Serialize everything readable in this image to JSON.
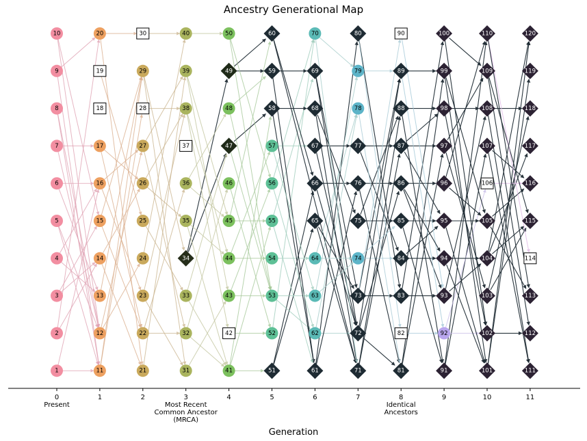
{
  "title": "Ancestry Generational Map",
  "xlabel": "Generation",
  "generations": [
    {
      "gen": 0,
      "label": "0",
      "sub": [
        "Present"
      ],
      "color": "#f28ea1",
      "edge": "#e0a3b4"
    },
    {
      "gen": 1,
      "label": "1",
      "sub": [],
      "color": "#eda060",
      "edge": "#dbb08f"
    },
    {
      "gen": 2,
      "label": "2",
      "sub": [],
      "color": "#c9a95c",
      "edge": "#cbb691"
    },
    {
      "gen": 3,
      "label": "3",
      "sub": [
        "Most Recent",
        "Common Ancestor",
        "(MRCA)"
      ],
      "color": "#aab45e",
      "edge": "#c3c6a0"
    },
    {
      "gen": 4,
      "label": "4",
      "sub": [],
      "color": "#7cc05e",
      "edge": "#a7c99a"
    },
    {
      "gen": 5,
      "label": "5",
      "sub": [],
      "color": "#5ec096",
      "edge": "#9fcdbc"
    },
    {
      "gen": 6,
      "label": "6",
      "sub": [],
      "color": "#5bbab6",
      "edge": "#a6cdca"
    },
    {
      "gen": 7,
      "label": "7",
      "sub": [],
      "color": "#5db4c8",
      "edge": "#a9cbd6"
    },
    {
      "gen": 8,
      "label": "8",
      "sub": [
        "Identical",
        "Ancestors"
      ],
      "color": "#5ea8c8",
      "edge": "#a4c9d8"
    },
    {
      "gen": 9,
      "label": "9",
      "sub": [],
      "color": "#b9a6ee",
      "edge": "#c9bde8"
    },
    {
      "gen": 10,
      "label": "10",
      "sub": [],
      "color": "#c89ad6",
      "edge": "#e0b7e6"
    },
    {
      "gen": 11,
      "label": "11",
      "sub": [],
      "color": "#e5a0da",
      "edge": "#e9b8e2"
    }
  ],
  "dark_node_color": "#1e2b33",
  "dark_edge_color": "#1e2b33",
  "mrca_color": "#262e1a",
  "gen4_dark_color": "#1f2a18",
  "late_dark_color": "#2c2233",
  "nodes": [
    {
      "id": 1,
      "gen": 0,
      "pos": 1,
      "shape": "circle"
    },
    {
      "id": 2,
      "gen": 0,
      "pos": 2,
      "shape": "circle"
    },
    {
      "id": 3,
      "gen": 0,
      "pos": 3,
      "shape": "circle"
    },
    {
      "id": 4,
      "gen": 0,
      "pos": 4,
      "shape": "circle"
    },
    {
      "id": 5,
      "gen": 0,
      "pos": 5,
      "shape": "circle"
    },
    {
      "id": 6,
      "gen": 0,
      "pos": 6,
      "shape": "circle"
    },
    {
      "id": 7,
      "gen": 0,
      "pos": 7,
      "shape": "circle"
    },
    {
      "id": 8,
      "gen": 0,
      "pos": 8,
      "shape": "circle"
    },
    {
      "id": 9,
      "gen": 0,
      "pos": 9,
      "shape": "circle"
    },
    {
      "id": 10,
      "gen": 0,
      "pos": 10,
      "shape": "circle"
    },
    {
      "id": 11,
      "gen": 1,
      "pos": 1,
      "shape": "circle"
    },
    {
      "id": 12,
      "gen": 1,
      "pos": 2,
      "shape": "circle"
    },
    {
      "id": 13,
      "gen": 1,
      "pos": 3,
      "shape": "circle"
    },
    {
      "id": 14,
      "gen": 1,
      "pos": 4,
      "shape": "circle"
    },
    {
      "id": 15,
      "gen": 1,
      "pos": 5,
      "shape": "circle"
    },
    {
      "id": 16,
      "gen": 1,
      "pos": 6,
      "shape": "circle"
    },
    {
      "id": 17,
      "gen": 1,
      "pos": 7,
      "shape": "circle"
    },
    {
      "id": 18,
      "gen": 1,
      "pos": 8,
      "shape": "square"
    },
    {
      "id": 19,
      "gen": 1,
      "pos": 9,
      "shape": "square"
    },
    {
      "id": 20,
      "gen": 1,
      "pos": 10,
      "shape": "circle"
    },
    {
      "id": 21,
      "gen": 2,
      "pos": 1,
      "shape": "circle"
    },
    {
      "id": 22,
      "gen": 2,
      "pos": 2,
      "shape": "circle"
    },
    {
      "id": 23,
      "gen": 2,
      "pos": 3,
      "shape": "circle"
    },
    {
      "id": 24,
      "gen": 2,
      "pos": 4,
      "shape": "circle"
    },
    {
      "id": 25,
      "gen": 2,
      "pos": 5,
      "shape": "circle"
    },
    {
      "id": 26,
      "gen": 2,
      "pos": 6,
      "shape": "circle"
    },
    {
      "id": 27,
      "gen": 2,
      "pos": 7,
      "shape": "circle"
    },
    {
      "id": 28,
      "gen": 2,
      "pos": 8,
      "shape": "square"
    },
    {
      "id": 29,
      "gen": 2,
      "pos": 9,
      "shape": "circle"
    },
    {
      "id": 30,
      "gen": 2,
      "pos": 10,
      "shape": "square"
    },
    {
      "id": 31,
      "gen": 3,
      "pos": 1,
      "shape": "circle"
    },
    {
      "id": 32,
      "gen": 3,
      "pos": 2,
      "shape": "circle"
    },
    {
      "id": 33,
      "gen": 3,
      "pos": 3,
      "shape": "circle"
    },
    {
      "id": 34,
      "gen": 3,
      "pos": 4,
      "shape": "diamond",
      "fill": "mrca"
    },
    {
      "id": 35,
      "gen": 3,
      "pos": 5,
      "shape": "circle"
    },
    {
      "id": 36,
      "gen": 3,
      "pos": 6,
      "shape": "circle"
    },
    {
      "id": 37,
      "gen": 3,
      "pos": 7,
      "shape": "square"
    },
    {
      "id": 38,
      "gen": 3,
      "pos": 8,
      "shape": "circle"
    },
    {
      "id": 39,
      "gen": 3,
      "pos": 9,
      "shape": "circle"
    },
    {
      "id": 40,
      "gen": 3,
      "pos": 10,
      "shape": "circle"
    },
    {
      "id": 41,
      "gen": 4,
      "pos": 1,
      "shape": "circle"
    },
    {
      "id": 42,
      "gen": 4,
      "pos": 2,
      "shape": "square"
    },
    {
      "id": 43,
      "gen": 4,
      "pos": 3,
      "shape": "circle"
    },
    {
      "id": 44,
      "gen": 4,
      "pos": 4,
      "shape": "circle"
    },
    {
      "id": 45,
      "gen": 4,
      "pos": 5,
      "shape": "circle"
    },
    {
      "id": 46,
      "gen": 4,
      "pos": 6,
      "shape": "circle"
    },
    {
      "id": 47,
      "gen": 4,
      "pos": 7,
      "shape": "diamond",
      "fill": "gen4dark"
    },
    {
      "id": 48,
      "gen": 4,
      "pos": 8,
      "shape": "circle"
    },
    {
      "id": 49,
      "gen": 4,
      "pos": 9,
      "shape": "diamond",
      "fill": "gen4dark"
    },
    {
      "id": 50,
      "gen": 4,
      "pos": 10,
      "shape": "circle"
    },
    {
      "id": 51,
      "gen": 5,
      "pos": 1,
      "shape": "diamond",
      "fill": "dark"
    },
    {
      "id": 52,
      "gen": 5,
      "pos": 2,
      "shape": "circle"
    },
    {
      "id": 53,
      "gen": 5,
      "pos": 3,
      "shape": "circle"
    },
    {
      "id": 54,
      "gen": 5,
      "pos": 4,
      "shape": "circle"
    },
    {
      "id": 55,
      "gen": 5,
      "pos": 5,
      "shape": "circle"
    },
    {
      "id": 56,
      "gen": 5,
      "pos": 6,
      "shape": "circle"
    },
    {
      "id": 57,
      "gen": 5,
      "pos": 7,
      "shape": "circle"
    },
    {
      "id": 58,
      "gen": 5,
      "pos": 8,
      "shape": "diamond",
      "fill": "dark"
    },
    {
      "id": 59,
      "gen": 5,
      "pos": 9,
      "shape": "diamond",
      "fill": "dark"
    },
    {
      "id": 60,
      "gen": 5,
      "pos": 10,
      "shape": "diamond",
      "fill": "dark"
    },
    {
      "id": 61,
      "gen": 6,
      "pos": 1,
      "shape": "diamond",
      "fill": "dark"
    },
    {
      "id": 62,
      "gen": 6,
      "pos": 2,
      "shape": "circle"
    },
    {
      "id": 63,
      "gen": 6,
      "pos": 3,
      "shape": "circle"
    },
    {
      "id": 64,
      "gen": 6,
      "pos": 4,
      "shape": "circle"
    },
    {
      "id": 65,
      "gen": 6,
      "pos": 5,
      "shape": "diamond",
      "fill": "dark"
    },
    {
      "id": 66,
      "gen": 6,
      "pos": 6,
      "shape": "diamond",
      "fill": "dark"
    },
    {
      "id": 67,
      "gen": 6,
      "pos": 7,
      "shape": "diamond",
      "fill": "dark"
    },
    {
      "id": 68,
      "gen": 6,
      "pos": 8,
      "shape": "diamond",
      "fill": "dark"
    },
    {
      "id": 69,
      "gen": 6,
      "pos": 9,
      "shape": "diamond",
      "fill": "dark"
    },
    {
      "id": 70,
      "gen": 6,
      "pos": 10,
      "shape": "circle"
    },
    {
      "id": 71,
      "gen": 7,
      "pos": 1,
      "shape": "diamond",
      "fill": "dark"
    },
    {
      "id": 72,
      "gen": 7,
      "pos": 2,
      "shape": "diamond",
      "fill": "dark"
    },
    {
      "id": 73,
      "gen": 7,
      "pos": 3,
      "shape": "diamond",
      "fill": "dark"
    },
    {
      "id": 74,
      "gen": 7,
      "pos": 4,
      "shape": "circle"
    },
    {
      "id": 75,
      "gen": 7,
      "pos": 5,
      "shape": "diamond",
      "fill": "dark"
    },
    {
      "id": 76,
      "gen": 7,
      "pos": 6,
      "shape": "diamond",
      "fill": "dark"
    },
    {
      "id": 77,
      "gen": 7,
      "pos": 7,
      "shape": "diamond",
      "fill": "dark"
    },
    {
      "id": 78,
      "gen": 7,
      "pos": 8,
      "shape": "circle"
    },
    {
      "id": 79,
      "gen": 7,
      "pos": 9,
      "shape": "circle"
    },
    {
      "id": 80,
      "gen": 7,
      "pos": 10,
      "shape": "diamond",
      "fill": "dark"
    },
    {
      "id": 81,
      "gen": 8,
      "pos": 1,
      "shape": "diamond",
      "fill": "dark"
    },
    {
      "id": 82,
      "gen": 8,
      "pos": 2,
      "shape": "square"
    },
    {
      "id": 83,
      "gen": 8,
      "pos": 3,
      "shape": "diamond",
      "fill": "dark"
    },
    {
      "id": 84,
      "gen": 8,
      "pos": 4,
      "shape": "diamond",
      "fill": "dark"
    },
    {
      "id": 85,
      "gen": 8,
      "pos": 5,
      "shape": "diamond",
      "fill": "dark"
    },
    {
      "id": 86,
      "gen": 8,
      "pos": 6,
      "shape": "diamond",
      "fill": "dark"
    },
    {
      "id": 87,
      "gen": 8,
      "pos": 7,
      "shape": "diamond",
      "fill": "dark"
    },
    {
      "id": 88,
      "gen": 8,
      "pos": 8,
      "shape": "diamond",
      "fill": "dark"
    },
    {
      "id": 89,
      "gen": 8,
      "pos": 9,
      "shape": "diamond",
      "fill": "dark"
    },
    {
      "id": 90,
      "gen": 8,
      "pos": 10,
      "shape": "square"
    },
    {
      "id": 91,
      "gen": 9,
      "pos": 1,
      "shape": "diamond",
      "fill": "late"
    },
    {
      "id": 92,
      "gen": 9,
      "pos": 2,
      "shape": "circle"
    },
    {
      "id": 93,
      "gen": 9,
      "pos": 3,
      "shape": "diamond",
      "fill": "late"
    },
    {
      "id": 94,
      "gen": 9,
      "pos": 4,
      "shape": "diamond",
      "fill": "late"
    },
    {
      "id": 95,
      "gen": 9,
      "pos": 5,
      "shape": "diamond",
      "fill": "late"
    },
    {
      "id": 96,
      "gen": 9,
      "pos": 6,
      "shape": "diamond",
      "fill": "late"
    },
    {
      "id": 97,
      "gen": 9,
      "pos": 7,
      "shape": "diamond",
      "fill": "late"
    },
    {
      "id": 98,
      "gen": 9,
      "pos": 8,
      "shape": "diamond",
      "fill": "late"
    },
    {
      "id": 99,
      "gen": 9,
      "pos": 9,
      "shape": "diamond",
      "fill": "late"
    },
    {
      "id": 100,
      "gen": 9,
      "pos": 10,
      "shape": "diamond",
      "fill": "late"
    },
    {
      "id": 101,
      "gen": 10,
      "pos": 1,
      "shape": "diamond",
      "fill": "late"
    },
    {
      "id": 102,
      "gen": 10,
      "pos": 2,
      "shape": "diamond",
      "fill": "late"
    },
    {
      "id": 103,
      "gen": 10,
      "pos": 3,
      "shape": "diamond",
      "fill": "late"
    },
    {
      "id": 104,
      "gen": 10,
      "pos": 4,
      "shape": "diamond",
      "fill": "late"
    },
    {
      "id": 105,
      "gen": 10,
      "pos": 5,
      "shape": "diamond",
      "fill": "late"
    },
    {
      "id": 106,
      "gen": 10,
      "pos": 6,
      "shape": "square"
    },
    {
      "id": 107,
      "gen": 10,
      "pos": 7,
      "shape": "diamond",
      "fill": "late"
    },
    {
      "id": 108,
      "gen": 10,
      "pos": 8,
      "shape": "diamond",
      "fill": "late"
    },
    {
      "id": 109,
      "gen": 10,
      "pos": 9,
      "shape": "diamond",
      "fill": "late"
    },
    {
      "id": 110,
      "gen": 10,
      "pos": 10,
      "shape": "diamond",
      "fill": "late"
    },
    {
      "id": 111,
      "gen": 11,
      "pos": 1,
      "shape": "diamond",
      "fill": "late"
    },
    {
      "id": 112,
      "gen": 11,
      "pos": 2,
      "shape": "diamond",
      "fill": "late"
    },
    {
      "id": 113,
      "gen": 11,
      "pos": 3,
      "shape": "diamond",
      "fill": "late"
    },
    {
      "id": 114,
      "gen": 11,
      "pos": 4,
      "shape": "square"
    },
    {
      "id": 115,
      "gen": 11,
      "pos": 5,
      "shape": "diamond",
      "fill": "late"
    },
    {
      "id": 116,
      "gen": 11,
      "pos": 6,
      "shape": "diamond",
      "fill": "late"
    },
    {
      "id": 117,
      "gen": 11,
      "pos": 7,
      "shape": "diamond",
      "fill": "late"
    },
    {
      "id": 118,
      "gen": 11,
      "pos": 8,
      "shape": "diamond",
      "fill": "late"
    },
    {
      "id": 119,
      "gen": 11,
      "pos": 9,
      "shape": "diamond",
      "fill": "late"
    },
    {
      "id": 120,
      "gen": 11,
      "pos": 10,
      "shape": "diamond",
      "fill": "late"
    }
  ],
  "edges": [
    [
      1,
      11
    ],
    [
      2,
      20
    ],
    [
      3,
      14
    ],
    [
      4,
      13
    ],
    [
      5,
      12
    ],
    [
      6,
      16
    ],
    [
      7,
      17
    ],
    [
      7,
      12
    ],
    [
      8,
      11
    ],
    [
      9,
      11
    ],
    [
      9,
      20
    ],
    [
      10,
      12
    ],
    [
      10,
      15
    ],
    [
      1,
      16
    ],
    [
      2,
      14
    ],
    [
      5,
      11
    ],
    [
      6,
      13
    ],
    [
      8,
      12
    ],
    [
      3,
      15
    ],
    [
      4,
      16
    ],
    [
      11,
      29
    ],
    [
      12,
      24
    ],
    [
      13,
      29
    ],
    [
      14,
      26
    ],
    [
      15,
      22
    ],
    [
      16,
      27
    ],
    [
      17,
      22
    ],
    [
      19,
      25
    ],
    [
      20,
      21
    ],
    [
      20,
      30
    ],
    [
      11,
      28
    ],
    [
      12,
      27
    ],
    [
      14,
      21
    ],
    [
      16,
      23
    ],
    [
      17,
      26
    ],
    [
      15,
      29
    ],
    [
      21,
      39
    ],
    [
      22,
      36
    ],
    [
      23,
      38
    ],
    [
      24,
      40
    ],
    [
      25,
      33
    ],
    [
      26,
      35
    ],
    [
      27,
      32
    ],
    [
      29,
      31
    ],
    [
      29,
      34
    ],
    [
      30,
      40
    ],
    [
      28,
      38
    ],
    [
      22,
      32
    ],
    [
      23,
      31
    ],
    [
      26,
      38
    ],
    [
      27,
      39
    ],
    [
      31,
      43
    ],
    [
      32,
      46
    ],
    [
      33,
      41
    ],
    [
      34,
      49
    ],
    [
      34,
      47
    ],
    [
      35,
      41
    ],
    [
      36,
      45
    ],
    [
      38,
      44
    ],
    [
      39,
      45
    ],
    [
      40,
      50
    ],
    [
      33,
      47
    ],
    [
      36,
      48
    ],
    [
      32,
      41
    ],
    [
      38,
      42
    ],
    [
      35,
      44
    ],
    [
      39,
      43
    ],
    [
      41,
      55
    ],
    [
      41,
      58
    ],
    [
      41,
      51
    ],
    [
      43,
      56
    ],
    [
      44,
      54
    ],
    [
      44,
      57
    ],
    [
      45,
      60
    ],
    [
      46,
      52
    ],
    [
      47,
      53
    ],
    [
      47,
      58
    ],
    [
      48,
      53
    ],
    [
      49,
      59
    ],
    [
      49,
      60
    ],
    [
      50,
      53
    ],
    [
      50,
      56
    ],
    [
      45,
      55
    ],
    [
      43,
      53
    ],
    [
      48,
      59
    ],
    [
      42,
      52
    ],
    [
      51,
      65
    ],
    [
      51,
      66
    ],
    [
      52,
      70
    ],
    [
      53,
      62
    ],
    [
      53,
      63
    ],
    [
      54,
      64
    ],
    [
      55,
      69
    ],
    [
      56,
      70
    ],
    [
      57,
      67
    ],
    [
      58,
      68
    ],
    [
      58,
      61
    ],
    [
      59,
      69
    ],
    [
      59,
      61
    ],
    [
      60,
      66
    ],
    [
      60,
      71
    ],
    [
      55,
      61
    ],
    [
      57,
      63
    ],
    [
      56,
      62
    ],
    [
      61,
      80
    ],
    [
      62,
      72
    ],
    [
      63,
      79
    ],
    [
      64,
      78
    ],
    [
      65,
      73
    ],
    [
      65,
      71
    ],
    [
      66,
      76
    ],
    [
      66,
      72
    ],
    [
      67,
      77
    ],
    [
      67,
      72
    ],
    [
      68,
      71
    ],
    [
      68,
      75
    ],
    [
      69,
      73
    ],
    [
      69,
      72
    ],
    [
      70,
      79
    ],
    [
      70,
      71
    ],
    [
      61,
      76
    ],
    [
      62,
      78
    ],
    [
      63,
      74
    ],
    [
      64,
      74
    ],
    [
      71,
      87
    ],
    [
      72,
      86
    ],
    [
      72,
      81
    ],
    [
      73,
      83
    ],
    [
      73,
      89
    ],
    [
      74,
      84
    ],
    [
      75,
      85
    ],
    [
      75,
      88
    ],
    [
      76,
      86
    ],
    [
      76,
      81
    ],
    [
      77,
      87
    ],
    [
      77,
      84
    ],
    [
      78,
      81
    ],
    [
      79,
      89
    ],
    [
      80,
      83
    ],
    [
      80,
      82
    ],
    [
      71,
      88
    ],
    [
      72,
      89
    ],
    [
      73,
      90
    ],
    [
      74,
      85
    ],
    [
      81,
      99
    ],
    [
      81,
      97
    ],
    [
      82,
      92
    ],
    [
      83,
      93
    ],
    [
      83,
      100
    ],
    [
      84,
      94
    ],
    [
      84,
      95
    ],
    [
      85,
      95
    ],
    [
      85,
      91
    ],
    [
      86,
      96
    ],
    [
      86,
      93
    ],
    [
      87,
      97
    ],
    [
      87,
      98
    ],
    [
      88,
      98
    ],
    [
      88,
      91
    ],
    [
      89,
      99
    ],
    [
      89,
      92
    ],
    [
      90,
      93
    ],
    [
      86,
      94
    ],
    [
      87,
      95
    ],
    [
      91,
      110
    ],
    [
      91,
      107
    ],
    [
      92,
      102
    ],
    [
      92,
      106
    ],
    [
      93,
      104
    ],
    [
      93,
      108
    ],
    [
      94,
      104
    ],
    [
      94,
      101
    ],
    [
      95,
      105
    ],
    [
      95,
      101
    ],
    [
      96,
      105
    ],
    [
      96,
      110
    ],
    [
      97,
      109
    ],
    [
      97,
      103
    ],
    [
      98,
      102
    ],
    [
      98,
      108
    ],
    [
      99,
      101
    ],
    [
      99,
      105
    ],
    [
      100,
      102
    ],
    [
      100,
      109
    ],
    [
      101,
      119
    ],
    [
      101,
      120
    ],
    [
      102,
      112
    ],
    [
      103,
      115
    ],
    [
      103,
      118
    ],
    [
      104,
      115
    ],
    [
      104,
      117
    ],
    [
      105,
      116
    ],
    [
      105,
      113
    ],
    [
      106,
      116
    ],
    [
      107,
      116
    ],
    [
      107,
      111
    ],
    [
      108,
      118
    ],
    [
      108,
      111
    ],
    [
      109,
      115
    ],
    [
      109,
      112
    ],
    [
      110,
      114
    ],
    [
      110,
      113
    ],
    [
      104,
      120
    ]
  ]
}
